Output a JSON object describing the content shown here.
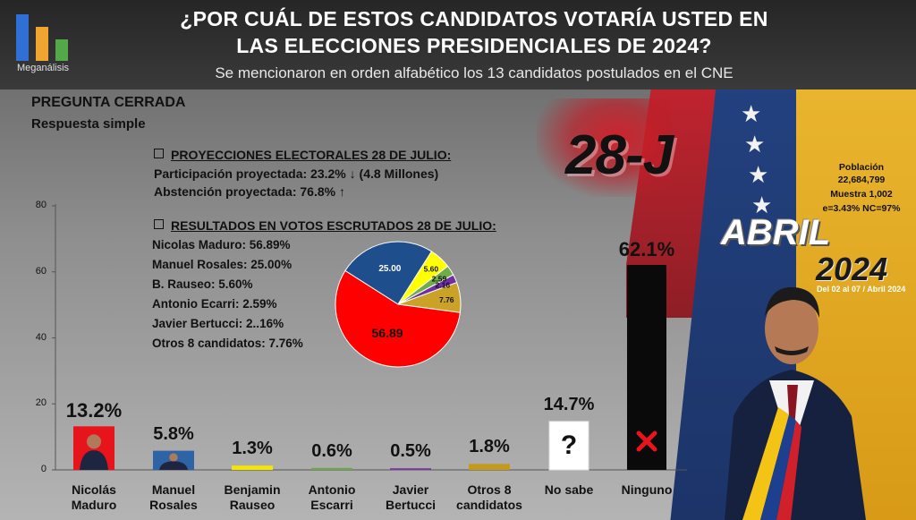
{
  "brand": {
    "name": "Meganálisis"
  },
  "header": {
    "title_line1": "¿POR CUÁL DE ESTOS CANDIDATOS VOTARÍA USTED EN",
    "title_line2": "LAS ELECCIONES PRESIDENCIALES DE 2024?",
    "subtitle": "Se mencionaron en orden alfabético los 13 candidatos postulados en el CNE"
  },
  "question_type": {
    "line1": "PREGUNTA  CERRADA",
    "line2": "Respuesta simple"
  },
  "projections": {
    "heading": "PROYECCIONES  ELECTORALES  28 DE JULIO:",
    "participation": "Participación proyectada: 23.2% ↓ (4.8 Millones)",
    "abstention": "Abstención proyectada: 76.8% ↑"
  },
  "results": {
    "heading": "RESULTADOS  EN  VOTOS  ESCRUTADOS  28 DE JULIO:",
    "lines": [
      "Nicolas Maduro: 56.89%",
      "Manuel Rosales: 25.00%",
      "B. Rauseo: 5.60%",
      "Antonio Ecarri: 2.59%",
      "Javier Bertucci: 2..16%",
      "Otros 8 candidatos: 7.76%"
    ]
  },
  "badges": {
    "tag": "28-J",
    "month": "ABRIL",
    "year": "2024",
    "dates": "Del 02 al 07 / Abril 2024"
  },
  "survey_meta": {
    "pop_label": "Población",
    "pop_value": "22,684,799",
    "sample": "Muestra 1,002",
    "error": "e=3.43%  NC=97%"
  },
  "chart_data": [
    {
      "type": "bar",
      "title": "¿POR CUÁL DE ESTOS CANDIDATOS VOTARÍA USTED EN LAS ELECCIONES PRESIDENCIALES DE 2024?",
      "categories": [
        [
          "Nicolás",
          "Maduro"
        ],
        [
          "Manuel",
          "Rosales"
        ],
        [
          "Benjamin",
          "Rauseo"
        ],
        [
          "Antonio",
          "Escarri"
        ],
        [
          "Javier",
          "Bertucci"
        ],
        [
          "Otros 8",
          "candidatos"
        ],
        [
          "No sabe"
        ],
        [
          "Ninguno"
        ]
      ],
      "values": [
        13.2,
        5.8,
        1.3,
        0.6,
        0.5,
        1.8,
        14.7,
        62.1
      ],
      "labels": [
        "13.2%",
        "5.8%",
        "1.3%",
        "0.6%",
        "0.5%",
        "1.8%",
        "14.7%",
        "62.1%"
      ],
      "colors": [
        "#e8141c",
        "#2e63a6",
        "#f4e600",
        "#6aa84f",
        "#7b3aa0",
        "#c49a1a",
        "#ffffff",
        "#0a0a0a"
      ],
      "yticks": [
        "0",
        "20",
        "40",
        "60",
        "80"
      ],
      "ylim": [
        0,
        80
      ],
      "grid": false
    },
    {
      "type": "pie",
      "title": "RESULTADOS EN VOTOS ESCRUTADOS 28 DE JULIO",
      "slices": [
        {
          "name": "Nicolas Maduro",
          "value": 56.89,
          "label": "56.89",
          "color": "#ff0000"
        },
        {
          "name": "Manuel Rosales",
          "value": 25.0,
          "label": "25.00",
          "color": "#1f4e8c"
        },
        {
          "name": "B. Rauseo",
          "value": 5.6,
          "label": "5.60",
          "color": "#ffff00"
        },
        {
          "name": "Antonio Ecarri",
          "value": 2.59,
          "label": "2.59",
          "color": "#70ad47"
        },
        {
          "name": "Javier Bertucci",
          "value": 2.16,
          "label": "2.16",
          "color": "#7030a0"
        },
        {
          "name": "Otros 8 candidatos",
          "value": 7.76,
          "label": "7.76",
          "color": "#c9a227"
        }
      ]
    }
  ],
  "marks": {
    "unknown": "?",
    "none": "✖"
  }
}
